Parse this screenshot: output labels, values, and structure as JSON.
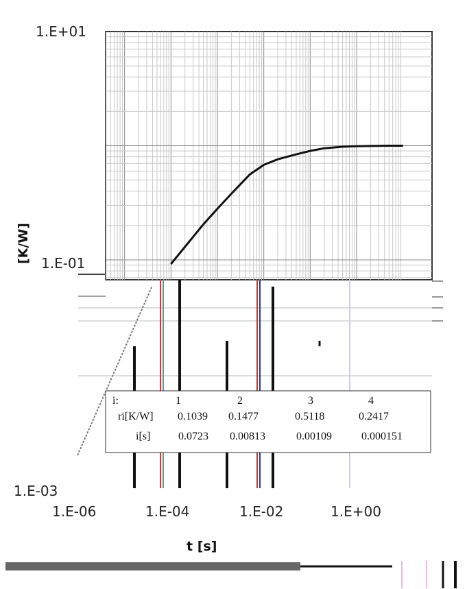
{
  "chart_data": {
    "type": "line",
    "xscale": "log",
    "yscale": "log",
    "xlabel": "t  [s]",
    "ylabel": "[K/W]",
    "xlim": [
      1e-06,
      10
    ],
    "ylim": [
      0.001,
      10
    ],
    "x_tick_labels": [
      "1.E-06",
      "1.E-04",
      "1.E-02",
      "1.E+00"
    ],
    "y_tick_labels": [
      "1.E+01",
      "1.E-01",
      "1.E-03"
    ],
    "grid": true,
    "series": [
      {
        "x": [
          0.0001,
          0.0002,
          0.0005,
          0.001,
          0.002,
          0.005,
          0.01,
          0.02,
          0.05,
          0.1,
          0.2,
          0.5,
          1,
          2,
          5,
          10
        ],
        "y": [
          0.092,
          0.13,
          0.205,
          0.28,
          0.38,
          0.56,
          0.68,
          0.76,
          0.84,
          0.9,
          0.95,
          0.98,
          0.99,
          0.995,
          1.0,
          1.0
        ]
      }
    ],
    "annotation_table": {
      "rows": [
        {
          "label": "i:",
          "values": [
            "1",
            "2",
            "3",
            "4"
          ]
        },
        {
          "label": "ri[K/W]",
          "values": [
            "0.1039",
            "0.1477",
            "0.5118",
            "0.2417"
          ]
        },
        {
          "label": "i[s]",
          "values": [
            "0.0723",
            "0.00813",
            "0.00109",
            "0.000151"
          ]
        }
      ]
    },
    "colors": {
      "line": "#111111",
      "grid": "#bbbbbb",
      "frame": "#333333"
    }
  }
}
